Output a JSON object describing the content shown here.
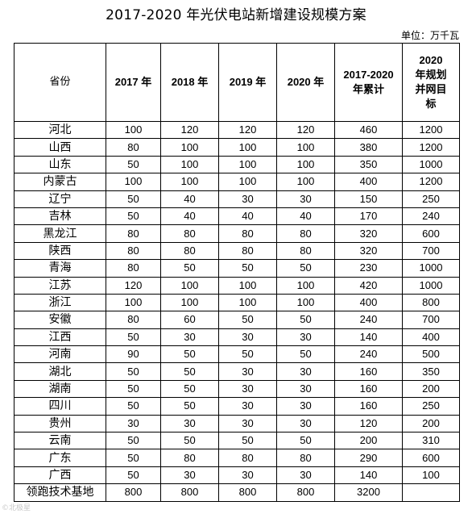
{
  "title": "2017-2020 年光伏电站新增建设规模方案",
  "unit": "单位：万千瓦",
  "watermark": "©北极星",
  "headers": {
    "province": "省份",
    "y2017": "2017 年",
    "y2018": "2018 年",
    "y2019": "2019 年",
    "y2020": "2020 年",
    "total": "2017-2020 年累计",
    "target": "2020 年规划并网目标"
  },
  "rows": [
    {
      "province": "河北",
      "y2017": "100",
      "y2018": "120",
      "y2019": "120",
      "y2020": "120",
      "total": "460",
      "target": "1200"
    },
    {
      "province": "山西",
      "y2017": "80",
      "y2018": "100",
      "y2019": "100",
      "y2020": "100",
      "total": "380",
      "target": "1200"
    },
    {
      "province": "山东",
      "y2017": "50",
      "y2018": "100",
      "y2019": "100",
      "y2020": "100",
      "total": "350",
      "target": "1000"
    },
    {
      "province": "内蒙古",
      "y2017": "100",
      "y2018": "100",
      "y2019": "100",
      "y2020": "100",
      "total": "400",
      "target": "1200"
    },
    {
      "province": "辽宁",
      "y2017": "50",
      "y2018": "40",
      "y2019": "30",
      "y2020": "30",
      "total": "150",
      "target": "250"
    },
    {
      "province": "吉林",
      "y2017": "50",
      "y2018": "40",
      "y2019": "40",
      "y2020": "40",
      "total": "170",
      "target": "240"
    },
    {
      "province": "黑龙江",
      "y2017": "80",
      "y2018": "80",
      "y2019": "80",
      "y2020": "80",
      "total": "320",
      "target": "600"
    },
    {
      "province": "陕西",
      "y2017": "80",
      "y2018": "80",
      "y2019": "80",
      "y2020": "80",
      "total": "320",
      "target": "700"
    },
    {
      "province": "青海",
      "y2017": "80",
      "y2018": "50",
      "y2019": "50",
      "y2020": "50",
      "total": "230",
      "target": "1000"
    },
    {
      "province": "江苏",
      "y2017": "120",
      "y2018": "100",
      "y2019": "100",
      "y2020": "100",
      "total": "420",
      "target": "1000"
    },
    {
      "province": "浙江",
      "y2017": "100",
      "y2018": "100",
      "y2019": "100",
      "y2020": "100",
      "total": "400",
      "target": "800"
    },
    {
      "province": "安徽",
      "y2017": "80",
      "y2018": "60",
      "y2019": "50",
      "y2020": "50",
      "total": "240",
      "target": "700"
    },
    {
      "province": "江西",
      "y2017": "50",
      "y2018": "30",
      "y2019": "30",
      "y2020": "30",
      "total": "140",
      "target": "400"
    },
    {
      "province": "河南",
      "y2017": "90",
      "y2018": "50",
      "y2019": "50",
      "y2020": "50",
      "total": "240",
      "target": "500"
    },
    {
      "province": "湖北",
      "y2017": "50",
      "y2018": "50",
      "y2019": "30",
      "y2020": "30",
      "total": "160",
      "target": "350"
    },
    {
      "province": "湖南",
      "y2017": "50",
      "y2018": "50",
      "y2019": "30",
      "y2020": "30",
      "total": "160",
      "target": "200"
    },
    {
      "province": "四川",
      "y2017": "50",
      "y2018": "50",
      "y2019": "30",
      "y2020": "30",
      "total": "160",
      "target": "250"
    },
    {
      "province": "贵州",
      "y2017": "30",
      "y2018": "30",
      "y2019": "30",
      "y2020": "30",
      "total": "120",
      "target": "200"
    },
    {
      "province": "云南",
      "y2017": "50",
      "y2018": "50",
      "y2019": "50",
      "y2020": "50",
      "total": "200",
      "target": "310"
    },
    {
      "province": "广东",
      "y2017": "50",
      "y2018": "80",
      "y2019": "80",
      "y2020": "80",
      "total": "290",
      "target": "600"
    },
    {
      "province": "广西",
      "y2017": "50",
      "y2018": "30",
      "y2019": "30",
      "y2020": "30",
      "total": "140",
      "target": "100"
    },
    {
      "province": "领跑技术基地",
      "y2017": "800",
      "y2018": "800",
      "y2019": "800",
      "y2020": "800",
      "total": "3200",
      "target": ""
    }
  ]
}
